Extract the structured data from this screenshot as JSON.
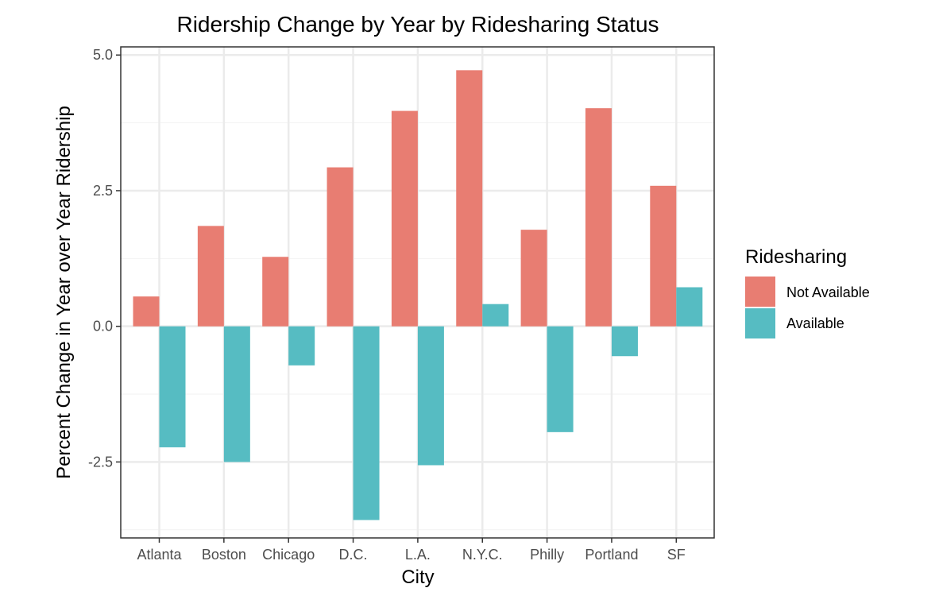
{
  "chart_data": {
    "type": "bar",
    "title": "Ridership Change by Year by Ridesharing Status",
    "xlabel": "City",
    "ylabel": "Percent Change in Year over Year Ridership",
    "categories": [
      "Atlanta",
      "Boston",
      "Chicago",
      "D.C.",
      "L.A.",
      "N.Y.C.",
      "Philly",
      "Portland",
      "SF"
    ],
    "series": [
      {
        "name": "Not Available",
        "color": "#E87D72",
        "values": [
          0.55,
          1.85,
          1.28,
          2.93,
          3.97,
          4.72,
          1.78,
          4.02,
          2.59
        ]
      },
      {
        "name": "Available",
        "color": "#56BCC2",
        "values": [
          -2.23,
          -2.5,
          -0.72,
          -3.57,
          -2.56,
          0.41,
          -1.95,
          -0.55,
          0.72
        ]
      }
    ],
    "ylim": [
      -3.9,
      5.15
    ],
    "yticks": [
      -2.5,
      0.0,
      2.5,
      5.0
    ],
    "ytick_labels": [
      "-2.5",
      "0.0",
      "2.5",
      "5.0"
    ],
    "grid": true,
    "legend": {
      "title": "Ridesharing",
      "position": "right"
    }
  }
}
